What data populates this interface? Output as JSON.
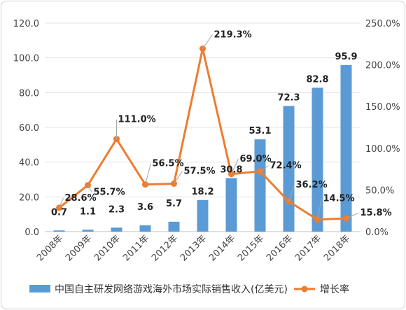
{
  "chart_data": {
    "type": "bar",
    "categories": [
      "2008年",
      "2009年",
      "2010年",
      "2011年",
      "2012年",
      "2013年",
      "2014年",
      "2015年",
      "2016年",
      "2017年",
      "2018年"
    ],
    "series": [
      {
        "name": "中国自主研发网络游戏海外市场实际销售收入(亿美元)",
        "type": "bar",
        "axis": "left",
        "color": "#5b9bd5",
        "values": [
          0.7,
          1.1,
          2.3,
          3.6,
          5.7,
          18.2,
          30.8,
          53.1,
          72.3,
          82.8,
          95.9
        ],
        "labels": [
          "0.7",
          "1.1",
          "2.3",
          "3.6",
          "5.7",
          "18.2",
          "30.8",
          "53.1",
          "72.3",
          "82.8",
          "95.9"
        ]
      },
      {
        "name": "增长率",
        "type": "line",
        "axis": "right",
        "color": "#ed7d31",
        "values": [
          28.6,
          55.7,
          111.0,
          56.5,
          57.5,
          219.3,
          69.0,
          72.4,
          36.2,
          14.5,
          15.8
        ],
        "labels": [
          "28.6%",
          "55.7%",
          "111.0%",
          "56.5%",
          "57.5%",
          "219.3%",
          "69.0%",
          "72.4%",
          "36.2%",
          "14.5%",
          "15.8%"
        ]
      }
    ],
    "left_axis": {
      "ylim": [
        0,
        120
      ],
      "ticks": [
        "0.0",
        "20.0",
        "40.0",
        "60.0",
        "80.0",
        "100.0",
        "120.0"
      ]
    },
    "right_axis": {
      "ylim": [
        0,
        250
      ],
      "ticks": [
        "0.0%",
        "50.0%",
        "100.0%",
        "150.0%",
        "200.0%",
        "250.0%"
      ]
    },
    "grid": true,
    "legend_position": "bottom"
  }
}
